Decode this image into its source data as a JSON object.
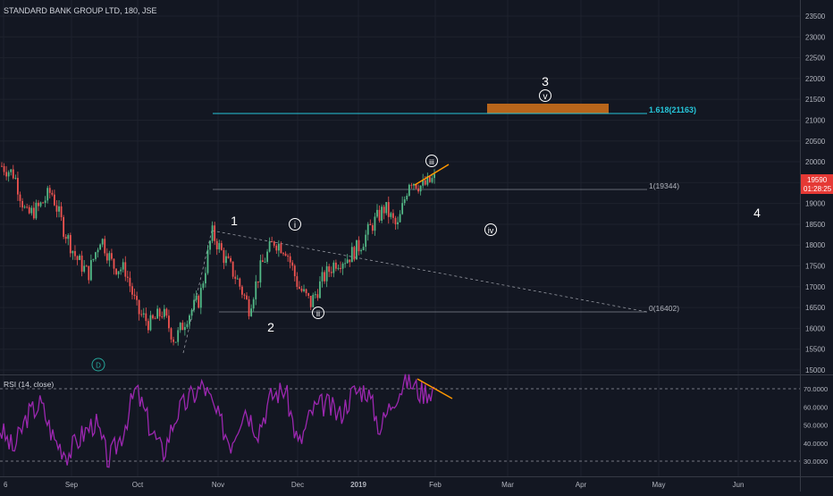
{
  "colors": {
    "background": "#131722",
    "up": "#26a69a",
    "up_bright": "#53b987",
    "down": "#ef5350",
    "rsi": "#9c27b0",
    "fib": "#26c6da",
    "target_box": "#b8651b",
    "trendline": "#ff9800",
    "label": "#ffffff",
    "grid": "#2a2e39",
    "axis_text": "#b2b5be",
    "price_tag": "#e53935"
  },
  "header": {
    "title": "STANDARD BANK GROUP LTD, 180, JSE",
    "rsi_title": "RSI (14, close)"
  },
  "price_axis": {
    "ticks": [
      "23500",
      "23000",
      "22500",
      "22000",
      "21500",
      "21000",
      "20500",
      "20000",
      "19500",
      "19000",
      "18500",
      "18000",
      "17500",
      "17000",
      "16500",
      "16000",
      "15500",
      "15000"
    ],
    "current_price": "19590",
    "countdown": "01:28:25"
  },
  "rsi_axis": {
    "ticks": [
      "70.0000",
      "60.0000",
      "50.0000",
      "40.0000",
      "30.0000"
    ]
  },
  "time_axis": {
    "ticks": [
      "6",
      "Sep",
      "Oct",
      "Nov",
      "Dec",
      "2019",
      "Feb",
      "Mar",
      "Apr",
      "May",
      "Jun"
    ]
  },
  "fib_levels": [
    {
      "label": "1.618(21163)",
      "value": 21163
    },
    {
      "label": "1(19344)",
      "value": 19344
    },
    {
      "label": "0(16402)",
      "value": 16402
    }
  ],
  "wave_labels": {
    "primary": [
      "1",
      "2",
      "3",
      "4"
    ],
    "minor": [
      "i",
      "ii",
      "iii",
      "iv",
      "v"
    ],
    "dividend_marker": "D"
  },
  "chart_data": {
    "type": "candlestick",
    "symbol": "STANDARD BANK GROUP LTD",
    "interval": "180",
    "exchange": "JSE",
    "price_range": [
      15000,
      23500
    ],
    "rsi_range": [
      30,
      70
    ],
    "rsi_bands": [
      70,
      30
    ],
    "current_price": 19590,
    "price_path": [
      {
        "x": "6",
        "price": 19900
      },
      {
        "price": 19700
      },
      {
        "price": 18700
      },
      {
        "price": 18900
      },
      {
        "price": 19300
      },
      {
        "price": 18400
      },
      {
        "price": 17700
      },
      {
        "price": 17300
      },
      {
        "price": 18200
      },
      {
        "price": 17500
      },
      {
        "price": 17400
      },
      {
        "price": 16400
      },
      {
        "price": 16100
      },
      {
        "price": 16400
      },
      {
        "price": 15700
      },
      {
        "price": 16300
      },
      {
        "price": 16700
      },
      {
        "price": 18300
      },
      {
        "price": 17700
      },
      {
        "price": 17200
      },
      {
        "price": 16500
      },
      {
        "price": 17500
      },
      {
        "price": 18100
      },
      {
        "price": 17900
      },
      {
        "price": 17000
      },
      {
        "price": 16600
      },
      {
        "price": 17200
      },
      {
        "price": 17600
      },
      {
        "price": 17700
      },
      {
        "price": 18000
      },
      {
        "price": 18500
      },
      {
        "price": 18900
      },
      {
        "price": 18400
      },
      {
        "price": 19600
      },
      {
        "price": 19400
      },
      {
        "price": 19590
      }
    ],
    "rsi_path": [
      48,
      36,
      55,
      62,
      42,
      34,
      44,
      52,
      30,
      45,
      70,
      50,
      34,
      56,
      65,
      72,
      55,
      40,
      60,
      47,
      66,
      70,
      38,
      58,
      62,
      55,
      68,
      70,
      48,
      65,
      75,
      68,
      70
    ]
  }
}
